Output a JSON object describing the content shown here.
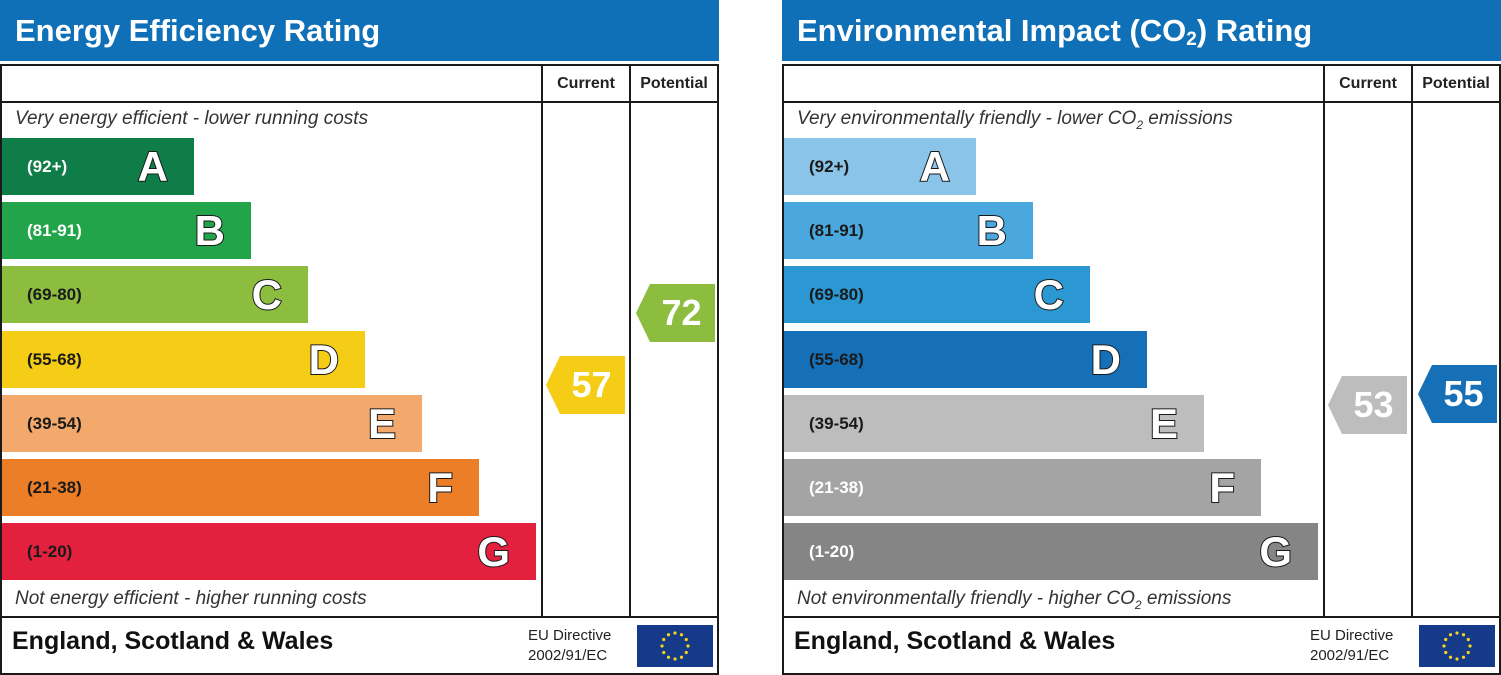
{
  "chart_data": [
    {
      "type": "bar",
      "title": "Energy Efficiency Rating",
      "title_sub": "",
      "title_suffix": "",
      "columns": [
        "Current",
        "Potential"
      ],
      "top_caption": {
        "text": "Very energy efficient - lower running costs",
        "sub": "",
        "after": ""
      },
      "bottom_caption": {
        "text": "Not energy efficient - higher running costs",
        "sub": "",
        "after": ""
      },
      "bands": [
        {
          "letter": "A",
          "range": "(92+)",
          "color": "#0f7d48",
          "text_color": "#ffffff"
        },
        {
          "letter": "B",
          "range": "(81-91)",
          "color": "#22a54a",
          "text_color": "#ffffff"
        },
        {
          "letter": "C",
          "range": "(69-80)",
          "color": "#8dbd3f",
          "text_color": "#1a1a1a"
        },
        {
          "letter": "D",
          "range": "(55-68)",
          "color": "#f6cd16",
          "text_color": "#1a1a1a"
        },
        {
          "letter": "E",
          "range": "(39-54)",
          "color": "#f2a96b",
          "text_color": "#1a1a1a"
        },
        {
          "letter": "F",
          "range": "(21-38)",
          "color": "#ec7e27",
          "text_color": "#1a1a1a"
        },
        {
          "letter": "G",
          "range": "(1-20)",
          "color": "#e3203d",
          "text_color": "#1a1a1a"
        }
      ],
      "current": {
        "value": 57,
        "color": "#f6cd16"
      },
      "potential": {
        "value": 72,
        "color": "#8dbd3f"
      },
      "footer": "England, Scotland & Wales",
      "eu_directive": [
        "EU Directive",
        "2002/91/EC"
      ]
    },
    {
      "type": "bar",
      "title": "Environmental Impact (CO",
      "title_sub": "2",
      "title_suffix": ") Rating",
      "columns": [
        "Current",
        "Potential"
      ],
      "top_caption": {
        "text": "Very environmentally friendly - lower CO",
        "sub": "2",
        "after": " emissions"
      },
      "bottom_caption": {
        "text": "Not environmentally friendly - higher CO",
        "sub": "2",
        "after": " emissions"
      },
      "bands": [
        {
          "letter": "A",
          "range": "(92+)",
          "color": "#8ac4e8",
          "text_color": "#1a1a1a"
        },
        {
          "letter": "B",
          "range": "(81-91)",
          "color": "#4aa8de",
          "text_color": "#1a1a1a"
        },
        {
          "letter": "C",
          "range": "(69-80)",
          "color": "#2b98d3",
          "text_color": "#1a1a1a"
        },
        {
          "letter": "D",
          "range": "(55-68)",
          "color": "#1670b7",
          "text_color": "#1a1a1a"
        },
        {
          "letter": "E",
          "range": "(39-54)",
          "color": "#bdbdbd",
          "text_color": "#1a1a1a"
        },
        {
          "letter": "F",
          "range": "(21-38)",
          "color": "#a4a4a4",
          "text_color": "#ffffff"
        },
        {
          "letter": "G",
          "range": "(1-20)",
          "color": "#858585",
          "text_color": "#ffffff"
        }
      ],
      "current": {
        "value": 53,
        "color": "#bdbdbd"
      },
      "potential": {
        "value": 55,
        "color": "#1670b7"
      },
      "footer": "England, Scotland & Wales",
      "eu_directive": [
        "EU Directive",
        "2002/91/EC"
      ]
    }
  ]
}
